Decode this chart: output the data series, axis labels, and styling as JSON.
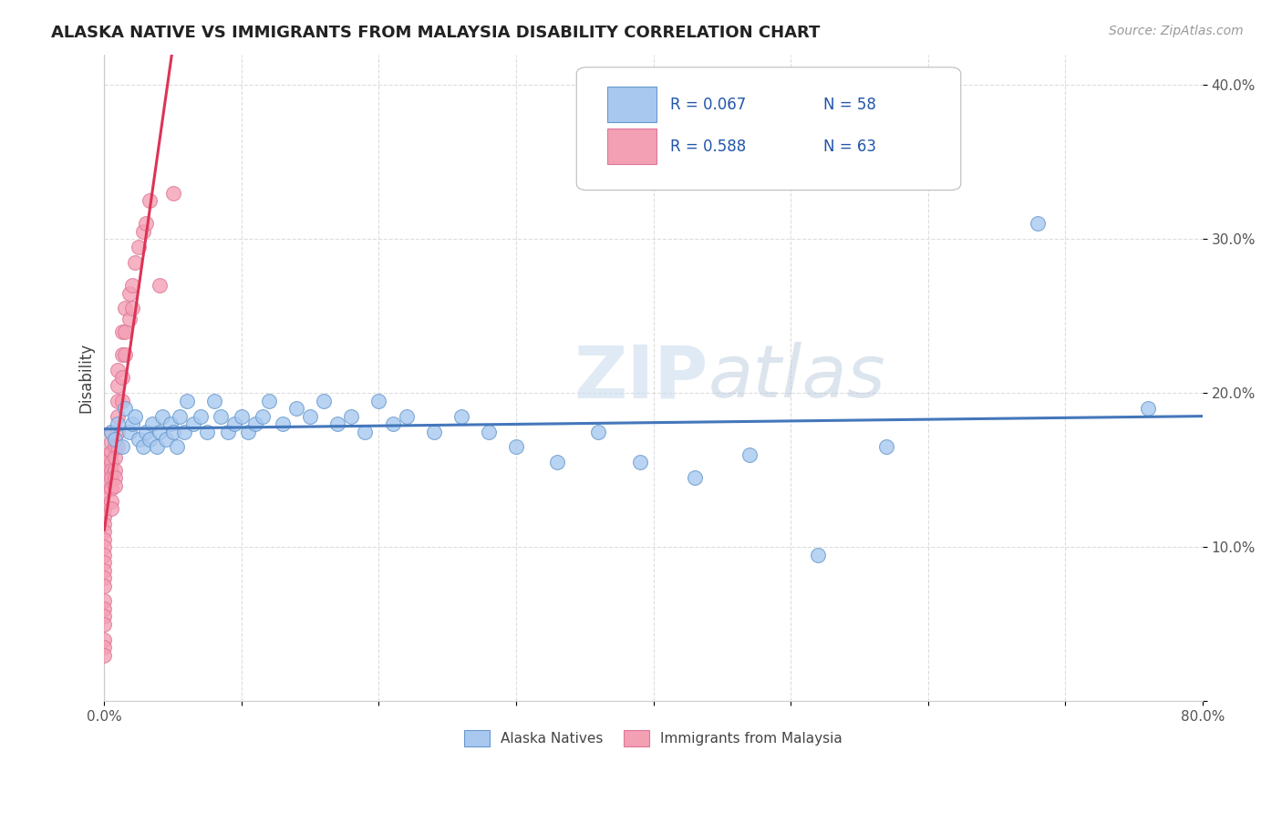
{
  "title": "ALASKA NATIVE VS IMMIGRANTS FROM MALAYSIA DISABILITY CORRELATION CHART",
  "source": "Source: ZipAtlas.com",
  "ylabel": "Disability",
  "xlim": [
    0.0,
    0.8
  ],
  "ylim": [
    0.0,
    0.42
  ],
  "xtick_positions": [
    0.0,
    0.1,
    0.2,
    0.3,
    0.4,
    0.5,
    0.6,
    0.7,
    0.8
  ],
  "xticklabels": [
    "0.0%",
    "",
    "",
    "",
    "",
    "",
    "",
    "",
    "80.0%"
  ],
  "ytick_positions": [
    0.0,
    0.1,
    0.2,
    0.3,
    0.4
  ],
  "yticklabels": [
    "",
    "10.0%",
    "20.0%",
    "30.0%",
    "40.0%"
  ],
  "alaska_color": "#a8c8f0",
  "alaska_edge": "#6699cc",
  "malaysia_color": "#f4a0b4",
  "malaysia_edge": "#dd7799",
  "trend_alaska_color": "#4477bb",
  "trend_malaysia_color": "#dd3355",
  "grid_color": "#dddddd",
  "alaska_x": [
    0.005,
    0.008,
    0.01,
    0.013,
    0.015,
    0.018,
    0.02,
    0.022,
    0.025,
    0.028,
    0.03,
    0.033,
    0.035,
    0.038,
    0.04,
    0.042,
    0.045,
    0.048,
    0.05,
    0.053,
    0.055,
    0.058,
    0.06,
    0.065,
    0.07,
    0.075,
    0.08,
    0.085,
    0.09,
    0.095,
    0.1,
    0.105,
    0.11,
    0.115,
    0.12,
    0.13,
    0.14,
    0.15,
    0.16,
    0.17,
    0.18,
    0.19,
    0.2,
    0.21,
    0.22,
    0.24,
    0.26,
    0.28,
    0.3,
    0.33,
    0.36,
    0.39,
    0.43,
    0.47,
    0.52,
    0.57,
    0.68,
    0.76
  ],
  "alaska_y": [
    0.175,
    0.17,
    0.18,
    0.165,
    0.19,
    0.175,
    0.18,
    0.185,
    0.17,
    0.165,
    0.175,
    0.17,
    0.18,
    0.165,
    0.175,
    0.185,
    0.17,
    0.18,
    0.175,
    0.165,
    0.185,
    0.175,
    0.195,
    0.18,
    0.185,
    0.175,
    0.195,
    0.185,
    0.175,
    0.18,
    0.185,
    0.175,
    0.18,
    0.185,
    0.195,
    0.18,
    0.19,
    0.185,
    0.195,
    0.18,
    0.185,
    0.175,
    0.195,
    0.18,
    0.185,
    0.175,
    0.185,
    0.175,
    0.165,
    0.155,
    0.175,
    0.155,
    0.145,
    0.16,
    0.095,
    0.165,
    0.31,
    0.19
  ],
  "malaysia_x": [
    0.0,
    0.0,
    0.0,
    0.0,
    0.0,
    0.0,
    0.0,
    0.0,
    0.0,
    0.0,
    0.0,
    0.0,
    0.0,
    0.0,
    0.0,
    0.0,
    0.0,
    0.0,
    0.0,
    0.0,
    0.0,
    0.0,
    0.0,
    0.0,
    0.005,
    0.005,
    0.005,
    0.005,
    0.005,
    0.005,
    0.005,
    0.005,
    0.005,
    0.008,
    0.008,
    0.008,
    0.008,
    0.008,
    0.008,
    0.01,
    0.01,
    0.01,
    0.01,
    0.01,
    0.01,
    0.013,
    0.013,
    0.013,
    0.013,
    0.015,
    0.015,
    0.015,
    0.018,
    0.018,
    0.02,
    0.02,
    0.022,
    0.025,
    0.028,
    0.03,
    0.033,
    0.04,
    0.05
  ],
  "malaysia_y": [
    0.16,
    0.155,
    0.15,
    0.145,
    0.14,
    0.135,
    0.125,
    0.12,
    0.115,
    0.11,
    0.105,
    0.1,
    0.095,
    0.09,
    0.085,
    0.08,
    0.075,
    0.065,
    0.06,
    0.055,
    0.05,
    0.04,
    0.035,
    0.03,
    0.175,
    0.168,
    0.162,
    0.155,
    0.15,
    0.145,
    0.138,
    0.13,
    0.125,
    0.17,
    0.165,
    0.158,
    0.15,
    0.145,
    0.14,
    0.215,
    0.205,
    0.195,
    0.185,
    0.175,
    0.165,
    0.24,
    0.225,
    0.21,
    0.195,
    0.255,
    0.24,
    0.225,
    0.265,
    0.248,
    0.27,
    0.255,
    0.285,
    0.295,
    0.305,
    0.31,
    0.325,
    0.27,
    0.33
  ]
}
